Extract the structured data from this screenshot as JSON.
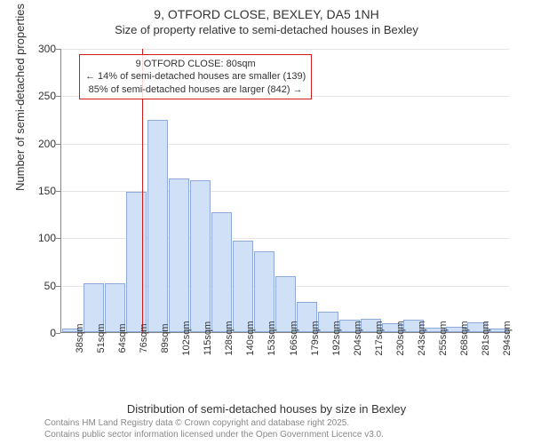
{
  "titles": {
    "line1": "9, OTFORD CLOSE, BEXLEY, DA5 1NH",
    "line2": "Size of property relative to semi-detached houses in Bexley"
  },
  "axes": {
    "ylabel": "Number of semi-detached properties",
    "xlabel": "Distribution of semi-detached houses by size in Bexley",
    "ylim": [
      0,
      300
    ],
    "ytick_step": 50,
    "xtick_labels": [
      "38sqm",
      "51sqm",
      "64sqm",
      "76sqm",
      "89sqm",
      "102sqm",
      "115sqm",
      "128sqm",
      "140sqm",
      "153sqm",
      "166sqm",
      "179sqm",
      "192sqm",
      "204sqm",
      "217sqm",
      "230sqm",
      "243sqm",
      "255sqm",
      "268sqm",
      "281sqm",
      "294sqm"
    ],
    "label_fontsize": 13,
    "tick_fontsize": 11,
    "grid_color": "#e5e5e5",
    "axis_color": "#888888"
  },
  "histogram": {
    "type": "histogram",
    "values": [
      4,
      52,
      52,
      148,
      224,
      162,
      160,
      127,
      97,
      85,
      59,
      32,
      22,
      13,
      14,
      9,
      13,
      5,
      6,
      10,
      4
    ],
    "bar_fill": "#cfe0f7",
    "bar_stroke": "#8ea8d8",
    "background_color": "#ffffff"
  },
  "reference": {
    "position_index": 3.3,
    "color": "#d11a1a"
  },
  "callout": {
    "border_color": "#d11a1a",
    "lines": {
      "l1": "9 OTFORD CLOSE: 80sqm",
      "l2": "← 14% of semi-detached houses are smaller (139)",
      "l3": "85% of semi-detached houses are larger (842) →"
    }
  },
  "footer": {
    "line1": "Contains HM Land Registry data © Crown copyright and database right 2025.",
    "line2": "Contains public sector information licensed under the Open Government Licence v3.0."
  }
}
